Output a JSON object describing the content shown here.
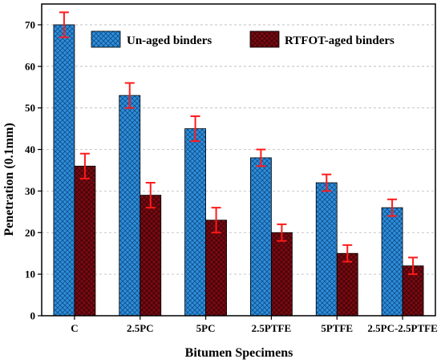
{
  "chart_data": {
    "type": "bar",
    "title": "",
    "xlabel": "Bitumen Specimens",
    "ylabel": "Penetration (0.1mm)",
    "ylim": [
      0,
      75
    ],
    "yticks": [
      0,
      10,
      20,
      30,
      40,
      50,
      60,
      70
    ],
    "grid": "horizontal dashed",
    "legend_position": "top-right",
    "categories": [
      "C",
      "2.5PC",
      "5PC",
      "2.5PTFE",
      "5PTFE",
      "2.5PC-2.5PTFE"
    ],
    "series": [
      {
        "name": "Un-aged binders",
        "color": "#2f8fdc",
        "values": [
          70,
          53,
          45,
          38,
          32,
          26
        ],
        "errors": [
          3,
          3,
          3,
          2,
          2,
          2
        ]
      },
      {
        "name": "RTFOT-aged binders",
        "color": "#7a0a12",
        "values": [
          36,
          29,
          23,
          20,
          15,
          12
        ],
        "errors": [
          3,
          3,
          3,
          2,
          2,
          2
        ]
      }
    ],
    "error_bar_color": "#ff1a1a"
  }
}
